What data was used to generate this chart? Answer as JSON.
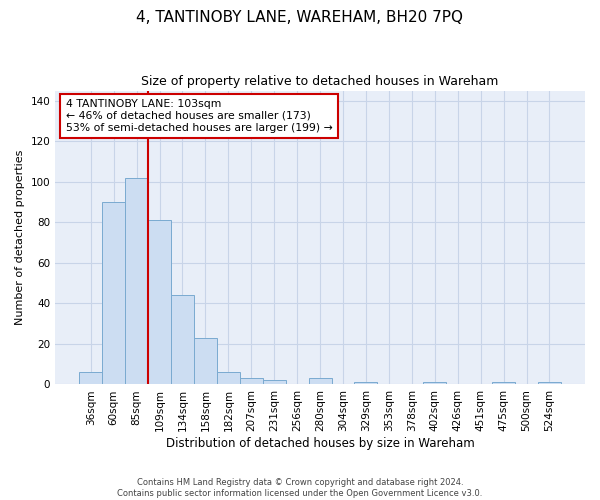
{
  "title": "4, TANTINOBY LANE, WAREHAM, BH20 7PQ",
  "subtitle": "Size of property relative to detached houses in Wareham",
  "xlabel": "Distribution of detached houses by size in Wareham",
  "ylabel": "Number of detached properties",
  "categories": [
    "36sqm",
    "60sqm",
    "85sqm",
    "109sqm",
    "134sqm",
    "158sqm",
    "182sqm",
    "207sqm",
    "231sqm",
    "256sqm",
    "280sqm",
    "304sqm",
    "329sqm",
    "353sqm",
    "378sqm",
    "402sqm",
    "426sqm",
    "451sqm",
    "475sqm",
    "500sqm",
    "524sqm"
  ],
  "values": [
    6,
    90,
    102,
    81,
    44,
    23,
    6,
    3,
    2,
    0,
    3,
    0,
    1,
    0,
    0,
    1,
    0,
    0,
    1,
    0,
    1
  ],
  "bar_color": "#ccddf2",
  "bar_edge_color": "#7aaad0",
  "bar_width": 1.0,
  "vline_x": 2.5,
  "vline_color": "#cc0000",
  "ylim": [
    0,
    145
  ],
  "yticks": [
    0,
    20,
    40,
    60,
    80,
    100,
    120,
    140
  ],
  "annotation_title": "4 TANTINOBY LANE: 103sqm",
  "annotation_line1": "← 46% of detached houses are smaller (173)",
  "annotation_line2": "53% of semi-detached houses are larger (199) →",
  "annotation_box_color": "#ffffff",
  "annotation_box_edge": "#cc0000",
  "grid_color": "#c8d4e8",
  "bg_color": "#e8eef8",
  "footer1": "Contains HM Land Registry data © Crown copyright and database right 2024.",
  "footer2": "Contains public sector information licensed under the Open Government Licence v3.0."
}
